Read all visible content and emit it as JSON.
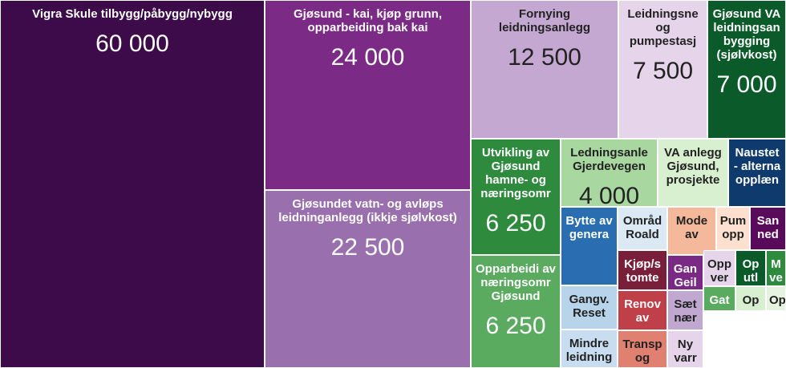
{
  "chart_data": {
    "type": "treemap",
    "categories": [
      "Vigra Skule tilbygg/påbygg/nybygg",
      "Gjøsund - kai, kjøp grunn, opparbeiding bak kai",
      "Gjøsundet vatn- og avløps leidninganlegg (ikkje sjølvkost)",
      "Fornying leidningsanlegg",
      "Leidningsne og pumpestasj",
      "Gjøsund VA leidningsan bygging (sjølvkost)",
      "Utvikling av Gjøsund hamne- og næringsomr",
      "Opparbeidi av næringsomr Gjøsund",
      "Ledningsanle Gjerdevegen",
      "VA anlegg Gjøsund, prosjekte",
      "Naustet - alterna opplæn",
      "Bytte av genera",
      "Gangv. Reset",
      "Mindre leidning",
      "Områd Roald",
      "Kjøp/s tomte",
      "Renov av",
      "Transp og",
      "Mode av",
      "Gan Geil",
      "Sæt nær",
      "Ny varr",
      "Pum opp",
      "San ned",
      "Opp ver",
      "Op utl",
      "M ve",
      "Gat",
      "Op",
      "Op"
    ],
    "values": [
      60000,
      24000,
      22500,
      12500,
      7500,
      7000,
      6250,
      6250,
      4000,
      3000,
      2400,
      2700,
      1500,
      1300,
      1300,
      1200,
      1200,
      1100,
      1400,
      800,
      900,
      850,
      900,
      950,
      700,
      700,
      450,
      480,
      450,
      300
    ],
    "value_labels": [
      "60 000",
      "24 000",
      "22 500",
      "12 500",
      "7 500",
      "7 000",
      "6 250",
      "6 250",
      "4 000",
      null,
      null,
      null,
      null,
      null,
      null,
      null,
      null,
      null,
      null,
      null,
      null,
      null,
      null,
      null,
      null,
      null,
      null,
      null,
      null,
      null
    ],
    "colors": [
      "#3d0a4a",
      "#7b2a85",
      "#9a6fae",
      "#c4a8d2",
      "#e6d5ea",
      "#0a5a2a",
      "#2e8b3e",
      "#5aab5f",
      "#a8d8a0",
      "#d8efd0",
      "#0f3a6e",
      "#2a6db0",
      "#b8d4ea",
      "#c8def0",
      "#dbe9f5",
      "#7a1f3a",
      "#c0404a",
      "#e08070",
      "#f4b89a",
      "#7a2a85",
      "#c0a8d0",
      "#e6d5ea",
      "#fde0d0",
      "#5a0a5a",
      "#e6d5ea",
      "#0a5a2a",
      "#2e8b3e",
      "#5aab5f",
      "#d8efd0",
      "#e6f3e0"
    ]
  }
}
